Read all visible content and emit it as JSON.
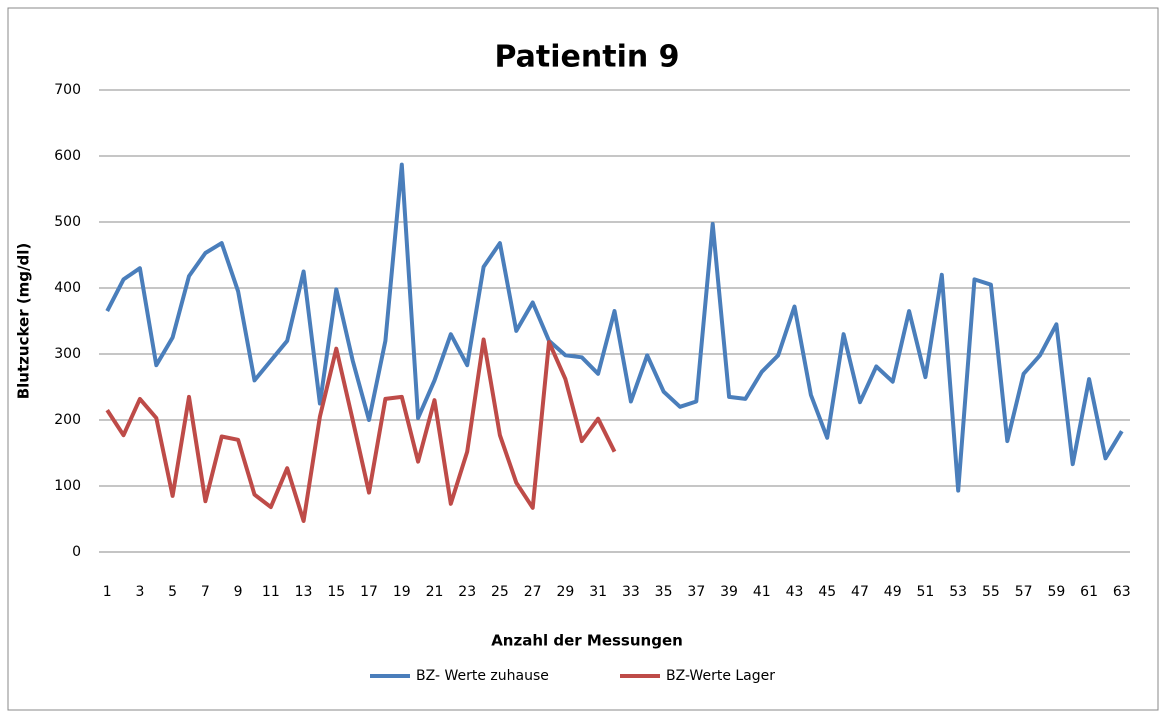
{
  "chart_data": {
    "type": "line",
    "title": "Patientin 9",
    "x_label": "Anzahl der Messungen",
    "y_label": "Blutzucker (mg/dl)",
    "categories": [
      1,
      null,
      3,
      null,
      5,
      null,
      7,
      null,
      9,
      null,
      11,
      null,
      13,
      null,
      15,
      null,
      17,
      null,
      19,
      null,
      21,
      null,
      23,
      null,
      25,
      null,
      27,
      null,
      29,
      null,
      31,
      null,
      33,
      null,
      35,
      null,
      37,
      null,
      39,
      null,
      41,
      null,
      43,
      null,
      45,
      null,
      47,
      null,
      49,
      null,
      51,
      null,
      53,
      null,
      55,
      null,
      57,
      null,
      59,
      null,
      61,
      null,
      63
    ],
    "series": [
      {
        "name": "BZ- Werte zuhause",
        "color": "#4a7ebb",
        "values": [
          365,
          413,
          430,
          283,
          325,
          418,
          453,
          468,
          395,
          260,
          290,
          320,
          425,
          225,
          398,
          290,
          200,
          320,
          587,
          203,
          260,
          330,
          283,
          432,
          468,
          335,
          378,
          320,
          298,
          295,
          270,
          365,
          228,
          298,
          243,
          220,
          228,
          497,
          235,
          232,
          273,
          298,
          372,
          238,
          173,
          330,
          227,
          281,
          258,
          365,
          265,
          420,
          93,
          413,
          405,
          168,
          270,
          298,
          345,
          133,
          262,
          142,
          183
        ]
      },
      {
        "name": "BZ-Werte Lager",
        "color": "#be4b48",
        "values": [
          215,
          177,
          232,
          203,
          85,
          235,
          77,
          175,
          170,
          87,
          68,
          127,
          47,
          205,
          308,
          200,
          90,
          232,
          235,
          137,
          230,
          73,
          152,
          322,
          177,
          105,
          67,
          318,
          262,
          168,
          202,
          152,
          null,
          null,
          null,
          null,
          null,
          null,
          null,
          null,
          null,
          null,
          null,
          null,
          null,
          null,
          null,
          null,
          null,
          null,
          null,
          null,
          null,
          null,
          null,
          null,
          null,
          null,
          null,
          null,
          null,
          null,
          null
        ]
      }
    ],
    "ylim": [
      0,
      700
    ],
    "yticks": [
      0,
      100,
      200,
      300,
      400,
      500,
      600,
      700
    ],
    "grid": true,
    "legend": "bottom"
  }
}
